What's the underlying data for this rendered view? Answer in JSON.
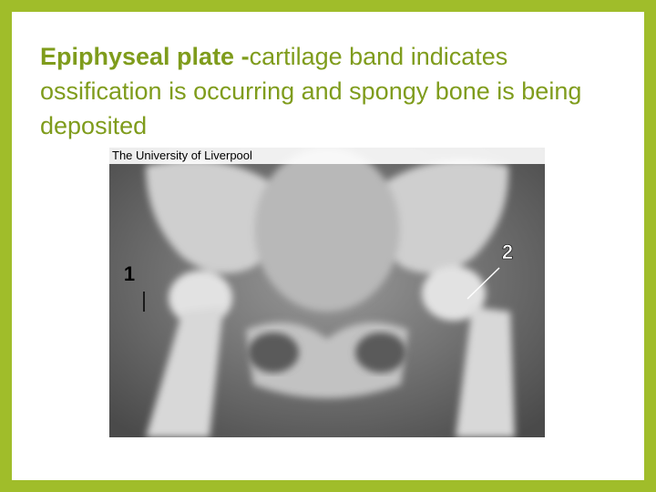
{
  "slide": {
    "title_bold": "Epiphyseal plate -",
    "title_rest": "cartilage band indicates ossification is occurring and spongy bone is being deposited"
  },
  "image": {
    "caption": "The University of Liverpool",
    "labels": [
      "1",
      "2"
    ]
  }
}
